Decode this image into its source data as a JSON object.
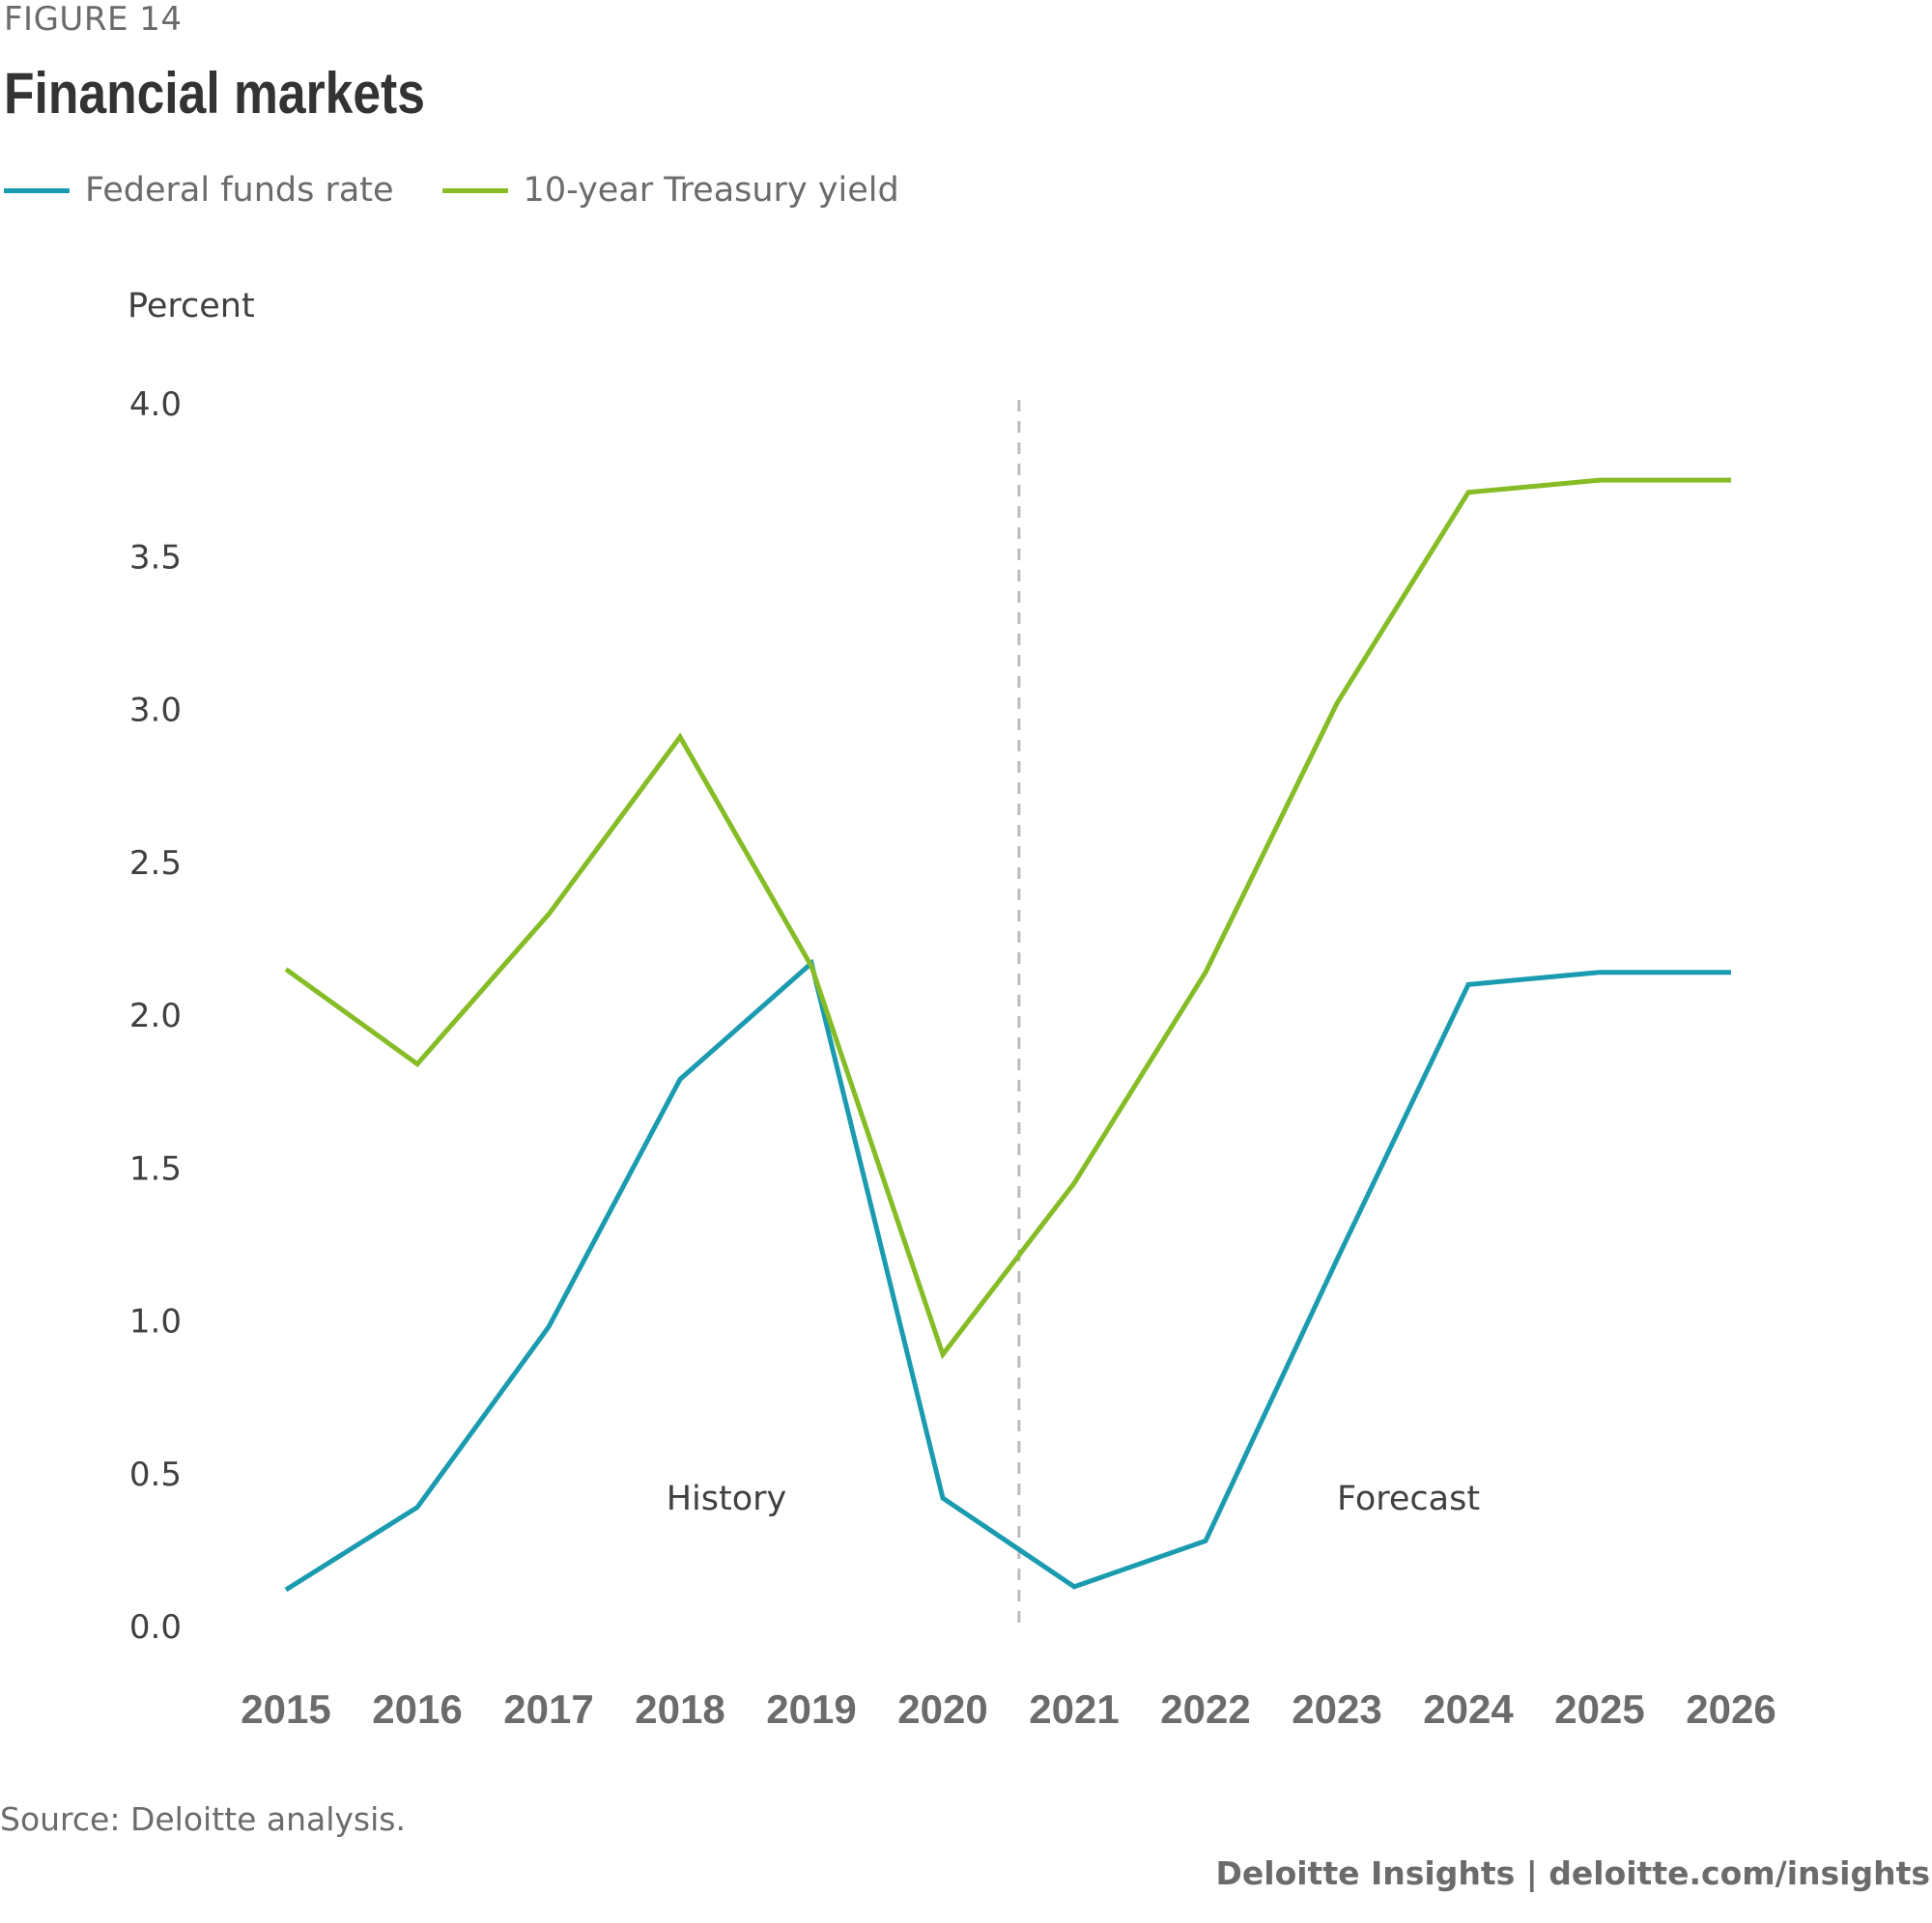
{
  "figure_label": "FIGURE 14",
  "title": "Financial markets",
  "source": "Source: Deloitte analysis.",
  "credit": "Deloitte Insights | deloitte.com/insights",
  "colors": {
    "federal_funds": "#1a9bb0",
    "treasury": "#86bc25",
    "divider": "#bbbbbb"
  },
  "chart_data": {
    "type": "line",
    "xlabel": "",
    "ylabel": "Percent",
    "ylim": [
      0,
      4.0
    ],
    "y_ticks": [
      "0.0",
      "0.5",
      "1.0",
      "1.5",
      "2.0",
      "2.5",
      "3.0",
      "3.5",
      "4.0"
    ],
    "grid": false,
    "legend_position": "top-left",
    "categories": [
      "2015",
      "2016",
      "2017",
      "2018",
      "2019",
      "2020",
      "2021",
      "2022",
      "2023",
      "2024",
      "2025",
      "2026"
    ],
    "series": [
      {
        "name": "Federal funds rate",
        "color": "#1a9bb0",
        "values": [
          0.12,
          0.39,
          0.98,
          1.79,
          2.17,
          0.42,
          0.13,
          0.28,
          1.2,
          2.1,
          2.14,
          2.14
        ]
      },
      {
        "name": "10-year Treasury yield",
        "color": "#86bc25",
        "values": [
          2.15,
          1.84,
          2.33,
          2.91,
          2.16,
          0.89,
          1.45,
          2.14,
          3.02,
          3.71,
          3.75,
          3.75
        ]
      }
    ],
    "annotations": [
      {
        "text": "History"
      },
      {
        "text": "Forecast"
      }
    ]
  }
}
